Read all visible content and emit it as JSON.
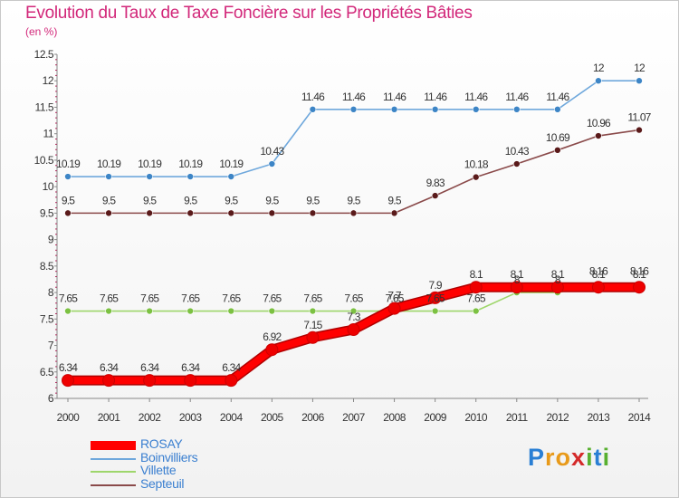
{
  "title": "Evolution du Taux de Taxe Foncière sur les Propriétés Bâties",
  "unit": "(en %)",
  "logo": {
    "letters": [
      "P",
      "r",
      "o",
      "x",
      "i",
      "t",
      "i"
    ],
    "colors": [
      "#2a7fd4",
      "#e89a1a",
      "#e89a1a",
      "#d42a2a",
      "#58b030",
      "#2a7fd4",
      "#58b030"
    ]
  },
  "chart_data": {
    "type": "line",
    "x": [
      "2000",
      "2001",
      "2002",
      "2003",
      "2004",
      "2005",
      "2006",
      "2007",
      "2008",
      "2009",
      "2010",
      "2011",
      "2012",
      "2013",
      "2014"
    ],
    "ylim": [
      6,
      12.5
    ],
    "yticks": [
      "6",
      "6.5",
      "7",
      "7.5",
      "8",
      "8.5",
      "9",
      "9.5",
      "10",
      "10.5",
      "11",
      "11.5",
      "12",
      "12.5"
    ],
    "grid": false,
    "legend": "bottom-left",
    "series": [
      {
        "name": "Boinvilliers",
        "color": "#6fa8dc",
        "dot": "#3d85c6",
        "values": [
          10.19,
          10.19,
          10.19,
          10.19,
          10.19,
          10.43,
          11.46,
          11.46,
          11.46,
          11.46,
          11.46,
          11.46,
          11.46,
          12,
          12
        ],
        "labels": [
          "10.19",
          "10.19",
          "10.19",
          "10.19",
          "10.19",
          "10.43",
          "11.46",
          "11.46",
          "11.46",
          "11.46",
          "11.46",
          "11.46",
          "11.46",
          "12",
          "12"
        ]
      },
      {
        "name": "Septeuil",
        "color": "#8a4a4a",
        "dot": "#5a1a1a",
        "values": [
          9.5,
          9.5,
          9.5,
          9.5,
          9.5,
          9.5,
          9.5,
          9.5,
          9.5,
          9.83,
          10.18,
          10.43,
          10.69,
          10.96,
          11.07
        ],
        "labels": [
          "9.5",
          "9.5",
          "9.5",
          "9.5",
          "9.5",
          "9.5",
          "9.5",
          "9.5",
          "9.5",
          "9.83",
          "10.18",
          "10.43",
          "10.69",
          "10.96",
          "11.07"
        ]
      },
      {
        "name": "Villette",
        "color": "#9ed66b",
        "dot": "#7cc142",
        "values": [
          7.65,
          7.65,
          7.65,
          7.65,
          7.65,
          7.65,
          7.65,
          7.65,
          7.65,
          7.65,
          7.65,
          8,
          8,
          8.16,
          8.16
        ],
        "labels": [
          "7.65",
          "7.65",
          "7.65",
          "7.65",
          "7.65",
          "7.65",
          "7.65",
          "7.65",
          "7.65",
          "7.65",
          "7.65",
          "8",
          "8",
          "8.16",
          "8.16"
        ]
      },
      {
        "name": "ROSAY",
        "color": "#ff0000",
        "dot": "#ee0000",
        "values": [
          6.34,
          6.34,
          6.34,
          6.34,
          6.34,
          6.92,
          7.15,
          7.3,
          7.7,
          7.9,
          8.1,
          8.1,
          8.1,
          8.1,
          8.1
        ],
        "labels": [
          "6.34",
          "6.34",
          "6.34",
          "6.34",
          "6.34",
          "6.92",
          "7.15",
          "7.3",
          "7.7",
          "7.9",
          "8.1",
          "8.1",
          "8.1",
          "8.1",
          "8.1"
        ]
      }
    ],
    "legend_order": [
      "ROSAY",
      "Boinvilliers",
      "Villette",
      "Septeuil"
    ]
  }
}
